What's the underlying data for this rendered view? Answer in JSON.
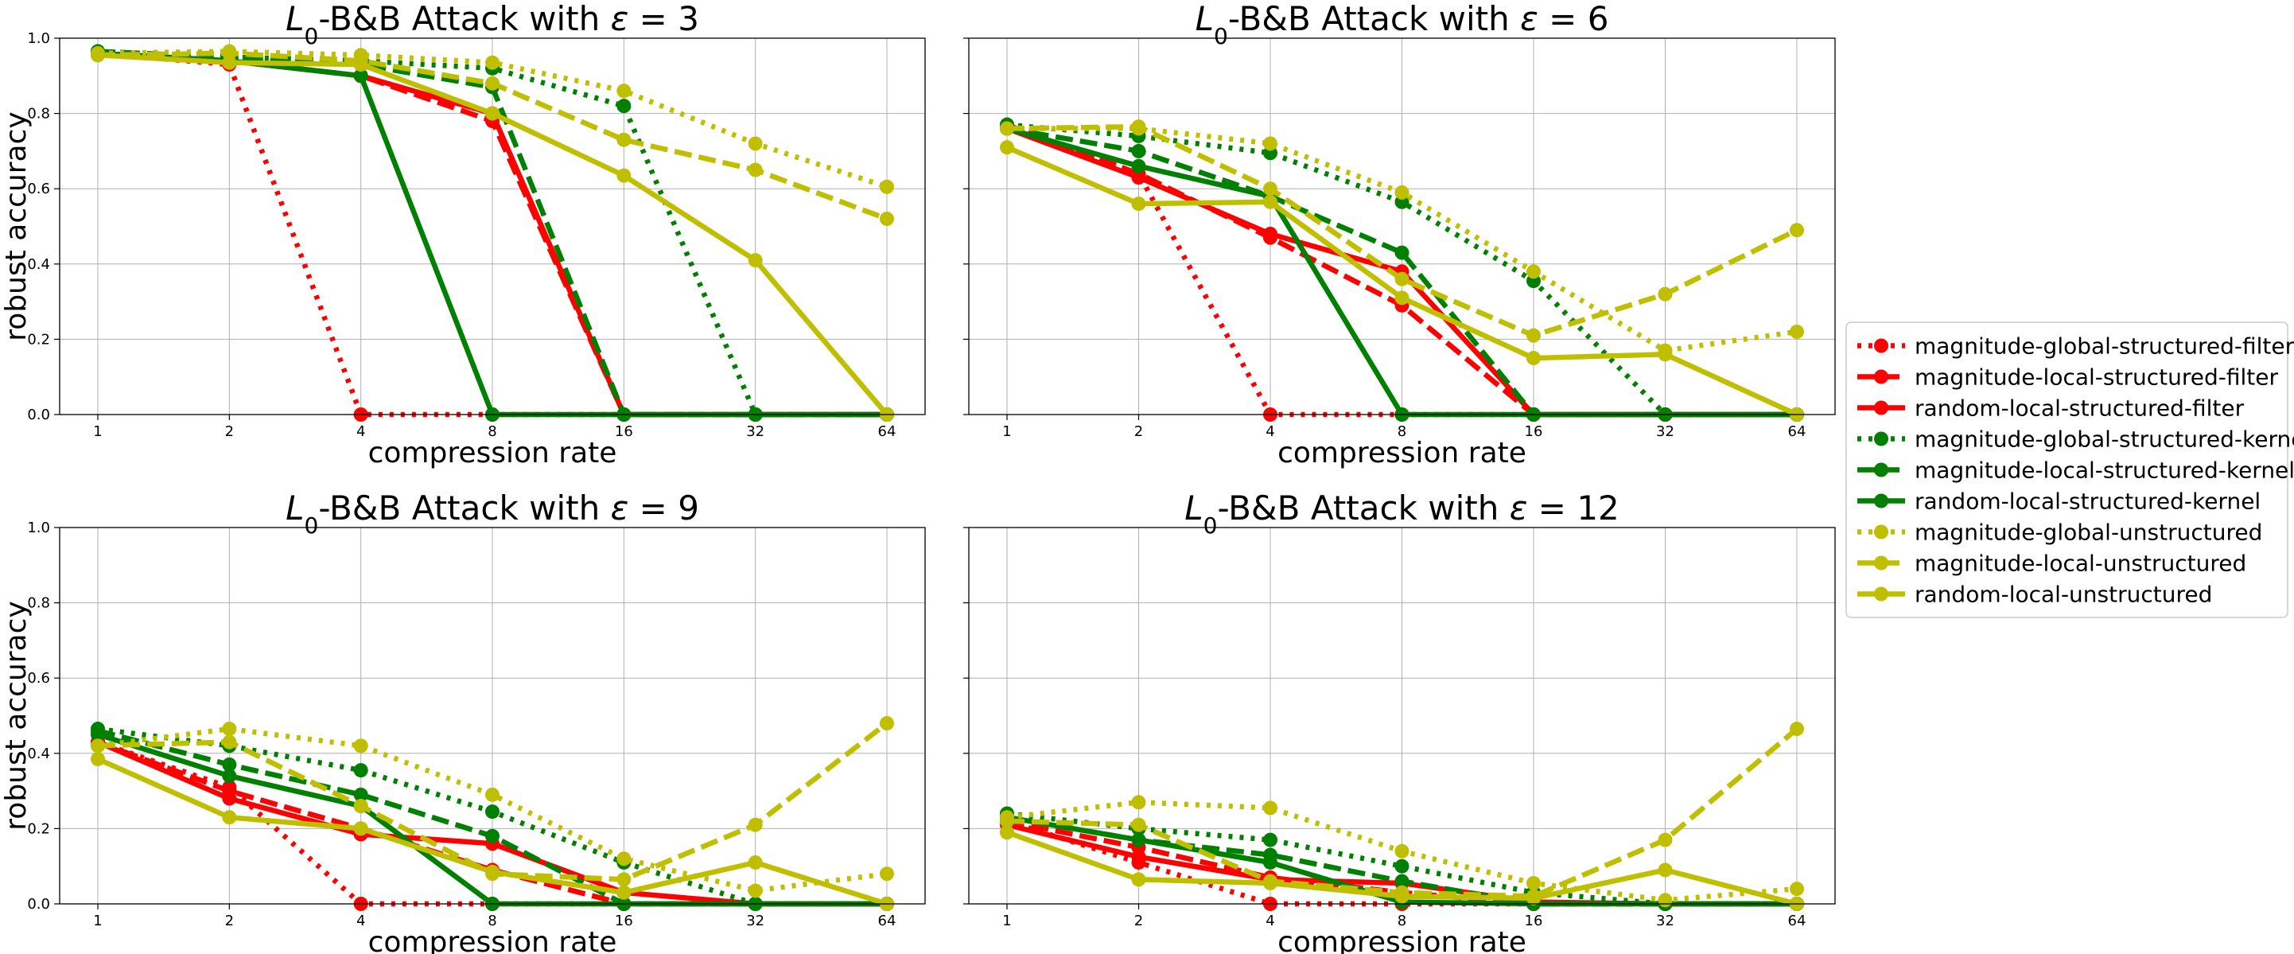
{
  "chart_data": {
    "type": "line",
    "x_scale": "log2",
    "x_ticks": [
      1,
      2,
      4,
      8,
      16,
      32,
      64
    ],
    "y_ticks": [
      0.0,
      0.2,
      0.4,
      0.6,
      0.8,
      1.0
    ],
    "ylim": [
      0,
      1
    ],
    "grid": true,
    "legend": {
      "position": "right",
      "entries": [
        {
          "name": "magnitude-global-structured-filter",
          "color": "#ff0000",
          "style": "dotted"
        },
        {
          "name": "magnitude-local-structured-filter",
          "color": "#ff0000",
          "style": "dashed"
        },
        {
          "name": "random-local-structured-filter",
          "color": "#ff0000",
          "style": "solid"
        },
        {
          "name": "magnitude-global-structured-kernel",
          "color": "#008000",
          "style": "dotted"
        },
        {
          "name": "magnitude-local-structured-kernel",
          "color": "#008000",
          "style": "dashed"
        },
        {
          "name": "random-local-structured-kernel",
          "color": "#008000",
          "style": "solid"
        },
        {
          "name": "magnitude-global-unstructured",
          "color": "#bfbf00",
          "style": "dotted"
        },
        {
          "name": "magnitude-local-unstructured",
          "color": "#bfbf00",
          "style": "dashed"
        },
        {
          "name": "random-local-unstructured",
          "color": "#bfbf00",
          "style": "solid"
        }
      ]
    },
    "subplots": [
      {
        "title_prefix": "L",
        "title_sub": "0",
        "title_main": "-B&B Attack with ",
        "title_eps": "ε",
        "title_value": " = 3",
        "xlabel": "compression rate",
        "ylabel": "robust accuracy",
        "series": [
          [
            0.96,
            0.93,
            0.0,
            0.0,
            0.0,
            0.0,
            0.0
          ],
          [
            0.96,
            0.94,
            0.9,
            0.78,
            0.0,
            0.0,
            0.0
          ],
          [
            0.96,
            0.94,
            0.9,
            0.8,
            0.0,
            0.0,
            0.0
          ],
          [
            0.965,
            0.95,
            0.94,
            0.92,
            0.82,
            0.0,
            0.0
          ],
          [
            0.965,
            0.95,
            0.93,
            0.87,
            0.0,
            0.0,
            0.0
          ],
          [
            0.96,
            0.94,
            0.9,
            0.0,
            0.0,
            0.0,
            0.0
          ],
          [
            0.96,
            0.965,
            0.955,
            0.935,
            0.86,
            0.72,
            0.605
          ],
          [
            0.955,
            0.96,
            0.94,
            0.88,
            0.73,
            0.65,
            0.52
          ],
          [
            0.955,
            0.935,
            0.93,
            0.8,
            0.635,
            0.41,
            0.0
          ]
        ]
      },
      {
        "title_prefix": "L",
        "title_sub": "0",
        "title_main": "-B&B Attack with ",
        "title_eps": "ε",
        "title_value": " = 6",
        "xlabel": "compression rate",
        "ylabel": "",
        "series": [
          [
            0.77,
            0.64,
            0.0,
            0.0,
            0.0,
            0.0,
            0.0
          ],
          [
            0.77,
            0.64,
            0.47,
            0.29,
            0.0,
            0.0,
            0.0
          ],
          [
            0.76,
            0.63,
            0.48,
            0.38,
            0.0,
            0.0,
            0.0
          ],
          [
            0.77,
            0.74,
            0.695,
            0.565,
            0.355,
            0.0,
            0.0
          ],
          [
            0.76,
            0.7,
            0.58,
            0.43,
            0.0,
            0.0,
            0.0
          ],
          [
            0.76,
            0.66,
            0.58,
            0.0,
            0.0,
            0.0,
            0.0
          ],
          [
            0.76,
            0.76,
            0.72,
            0.59,
            0.38,
            0.17,
            0.22
          ],
          [
            0.76,
            0.765,
            0.6,
            0.36,
            0.21,
            0.32,
            0.49
          ],
          [
            0.71,
            0.56,
            0.565,
            0.31,
            0.15,
            0.16,
            0.0
          ]
        ]
      },
      {
        "title_prefix": "L",
        "title_sub": "0",
        "title_main": "-B&B Attack with ",
        "title_eps": "ε",
        "title_value": " = 9",
        "xlabel": "compression rate",
        "ylabel": "robust accuracy",
        "series": [
          [
            0.43,
            0.31,
            0.0,
            0.0,
            0.0,
            0.0,
            0.0
          ],
          [
            0.43,
            0.3,
            0.2,
            0.09,
            0.0,
            0.0,
            0.0
          ],
          [
            0.43,
            0.28,
            0.185,
            0.16,
            0.03,
            0.0,
            0.0
          ],
          [
            0.465,
            0.42,
            0.355,
            0.245,
            0.11,
            0.0,
            0.0
          ],
          [
            0.46,
            0.37,
            0.29,
            0.18,
            0.0,
            0.0,
            0.0
          ],
          [
            0.45,
            0.34,
            0.26,
            0.0,
            0.0,
            0.0,
            0.0
          ],
          [
            0.42,
            0.465,
            0.42,
            0.29,
            0.12,
            0.035,
            0.08
          ],
          [
            0.42,
            0.43,
            0.26,
            0.08,
            0.065,
            0.21,
            0.48
          ],
          [
            0.385,
            0.23,
            0.2,
            0.085,
            0.03,
            0.11,
            0.0
          ]
        ]
      },
      {
        "title_prefix": "L",
        "title_sub": "0",
        "title_main": "-B&B Attack with ",
        "title_eps": "ε",
        "title_value": " = 12",
        "xlabel": "compression rate",
        "ylabel": "",
        "series": [
          [
            0.22,
            0.11,
            0.0,
            0.0,
            0.0,
            0.0,
            0.0
          ],
          [
            0.22,
            0.15,
            0.07,
            0.03,
            0.0,
            0.0,
            0.0
          ],
          [
            0.21,
            0.125,
            0.065,
            0.055,
            0.005,
            0.0,
            0.0
          ],
          [
            0.24,
            0.2,
            0.17,
            0.1,
            0.03,
            0.0,
            0.0
          ],
          [
            0.23,
            0.17,
            0.13,
            0.06,
            0.0,
            0.0,
            0.0
          ],
          [
            0.23,
            0.17,
            0.11,
            0.005,
            0.0,
            0.0,
            0.0
          ],
          [
            0.23,
            0.27,
            0.255,
            0.14,
            0.055,
            0.01,
            0.04
          ],
          [
            0.22,
            0.21,
            0.06,
            0.03,
            0.02,
            0.17,
            0.465
          ],
          [
            0.19,
            0.065,
            0.055,
            0.02,
            0.015,
            0.09,
            0.0
          ]
        ]
      }
    ]
  }
}
